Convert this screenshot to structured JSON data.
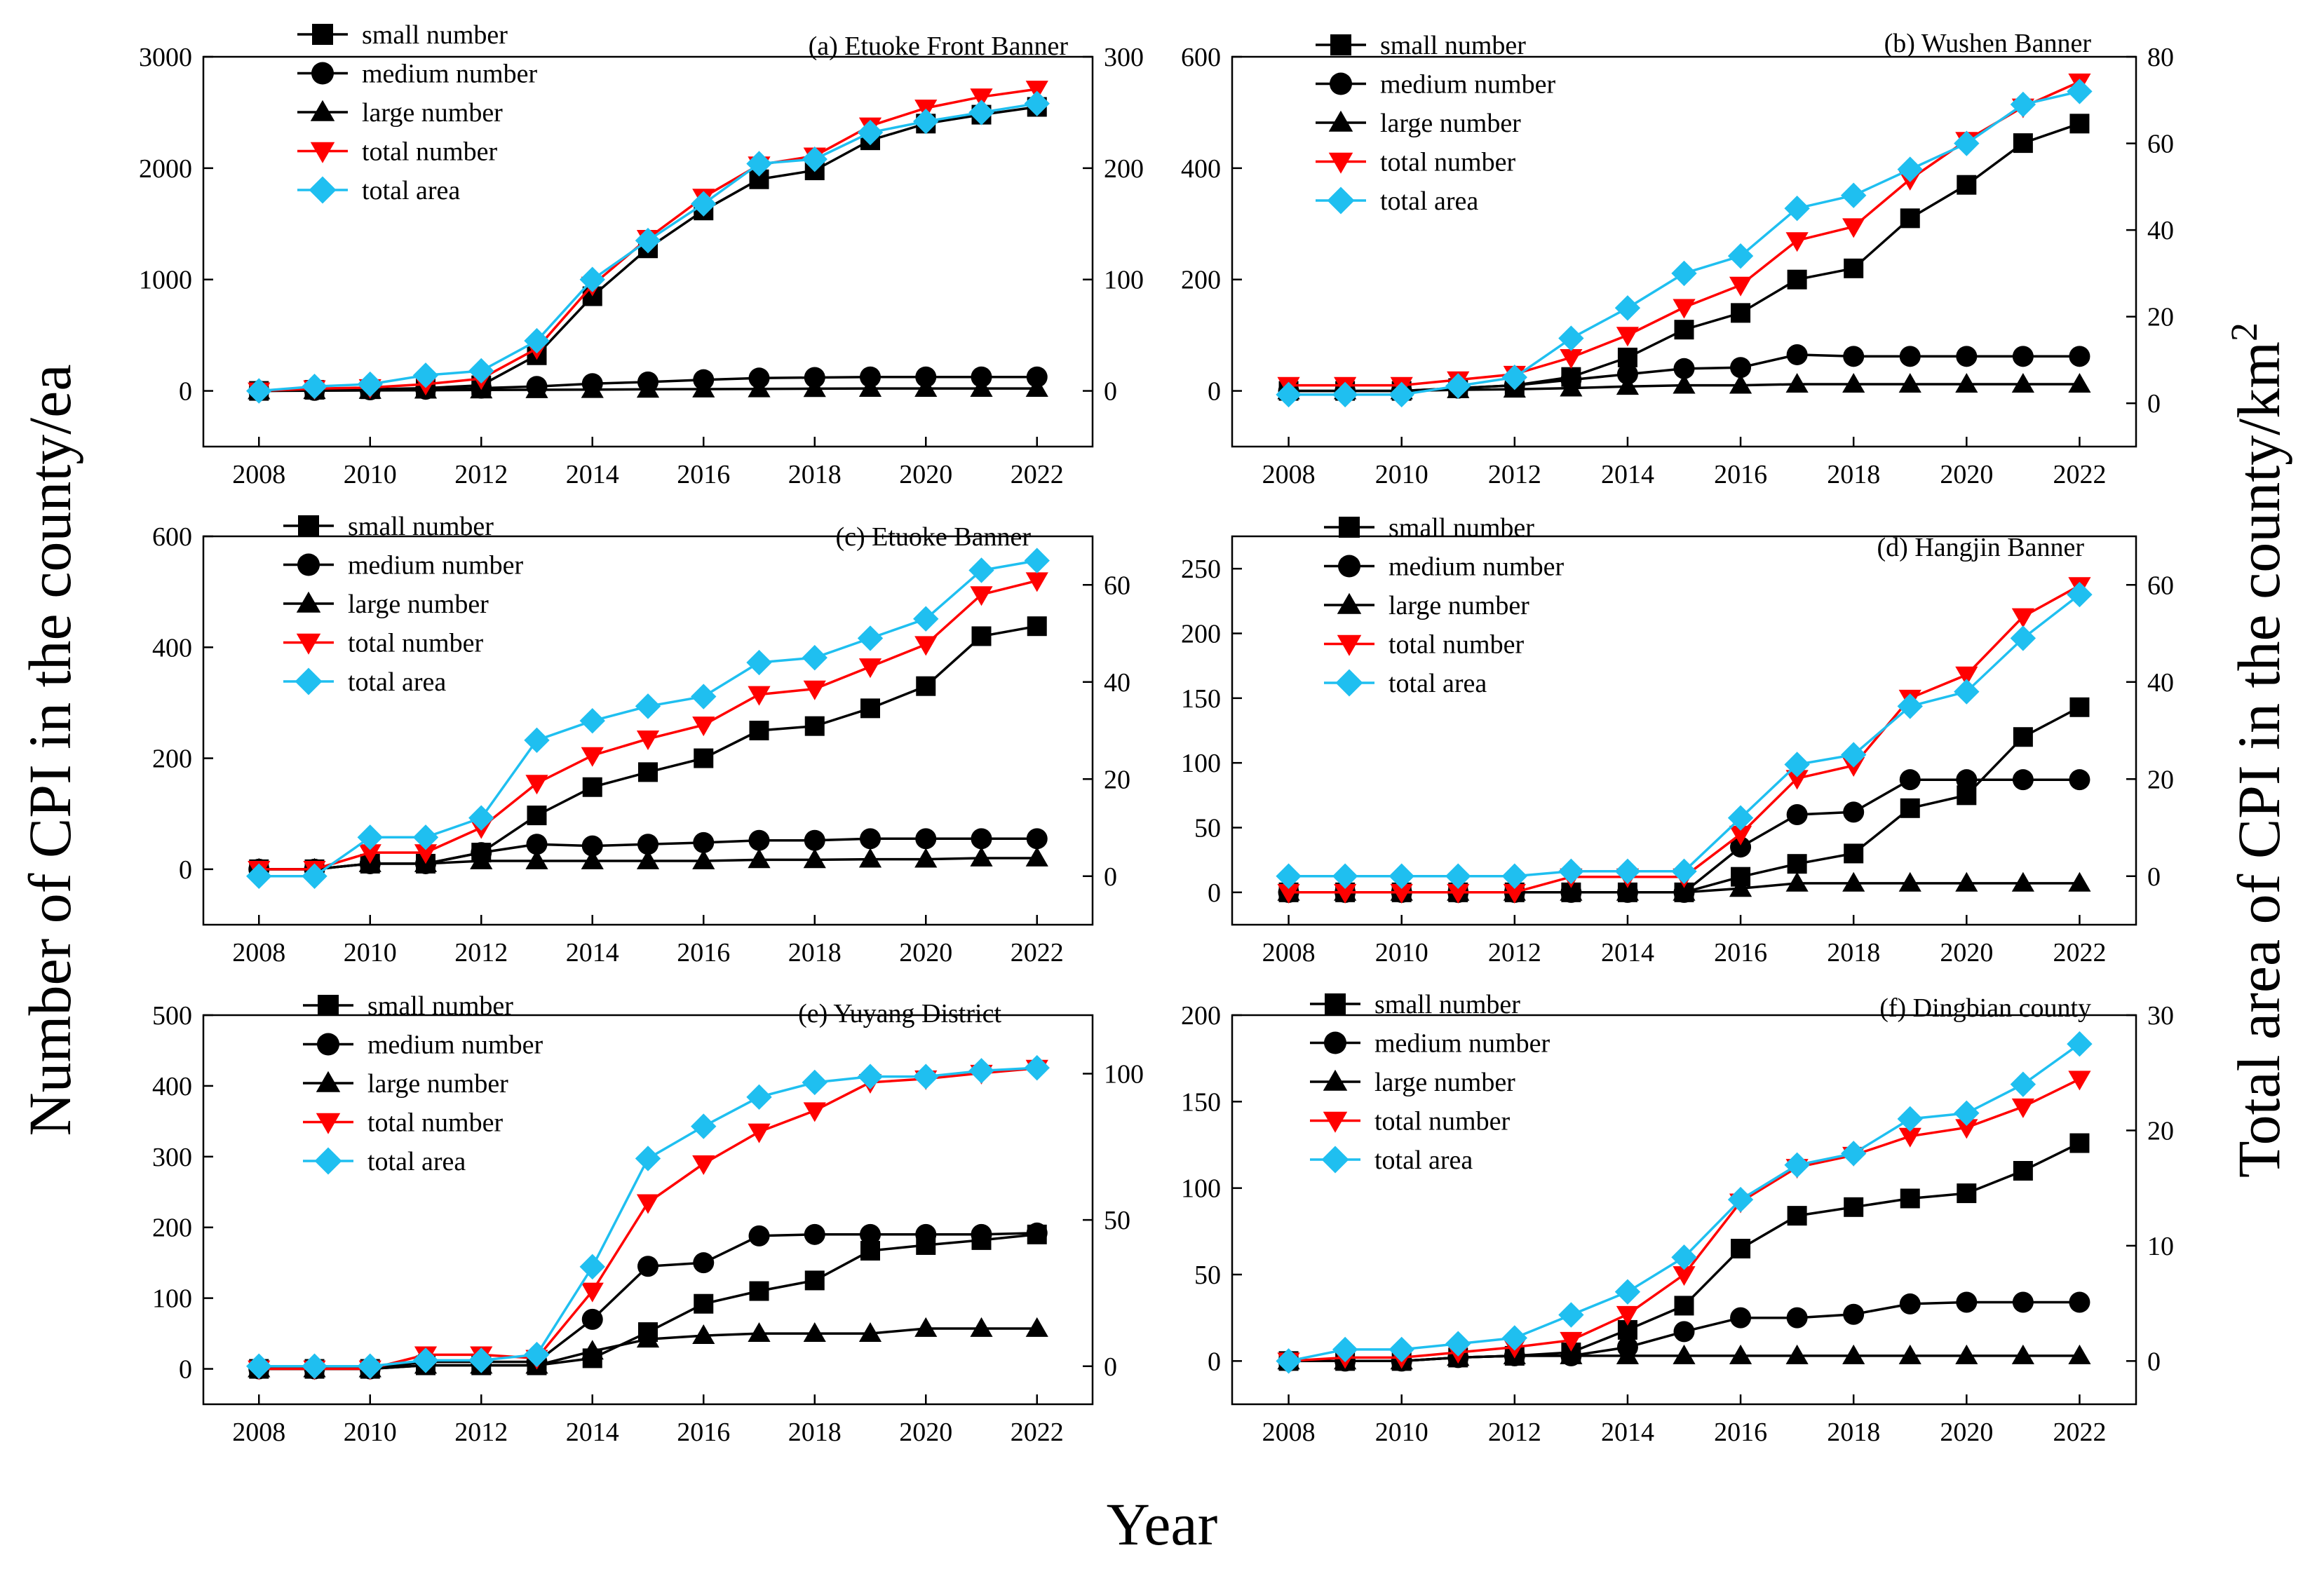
{
  "figure": {
    "ylabel_left": "Number of CPI in the county/ea",
    "ylabel_right": "Total area of CPI in the county/km",
    "ylabel_right_sup": "2",
    "xlabel": "Year"
  },
  "colors": {
    "small": "#000000",
    "medium": "#000000",
    "large": "#000000",
    "total_number": "#ff0000",
    "total_area": "#1fbff0"
  },
  "legend": [
    "small number",
    "medium number",
    "large number",
    "total number",
    "total area"
  ],
  "chart_data": [
    {
      "type": "line",
      "title": "(a) Etuoke Front Banner",
      "x": [
        2008,
        2009,
        2010,
        2011,
        2012,
        2013,
        2014,
        2015,
        2016,
        2017,
        2018,
        2019,
        2020,
        2021,
        2022
      ],
      "xticks": [
        2008,
        2010,
        2012,
        2014,
        2016,
        2018,
        2020,
        2022
      ],
      "ylim_left": [
        -500,
        3000
      ],
      "yticks_left": [
        0,
        1000,
        2000,
        3000
      ],
      "ylim_right": [
        -50,
        300
      ],
      "yticks_right": [
        0,
        100,
        200,
        300
      ],
      "series": [
        {
          "name": "small number",
          "axis": "left",
          "values": [
            0,
            10,
            15,
            25,
            50,
            320,
            850,
            1280,
            1620,
            1900,
            1980,
            2250,
            2400,
            2480,
            2550
          ]
        },
        {
          "name": "medium number",
          "axis": "left",
          "values": [
            0,
            5,
            10,
            15,
            25,
            40,
            65,
            80,
            100,
            115,
            120,
            125,
            125,
            125,
            125
          ]
        },
        {
          "name": "large number",
          "axis": "left",
          "values": [
            0,
            2,
            4,
            6,
            8,
            10,
            12,
            14,
            16,
            18,
            20,
            22,
            22,
            22,
            22
          ]
        },
        {
          "name": "total number",
          "axis": "left",
          "values": [
            0,
            20,
            30,
            60,
            110,
            380,
            950,
            1370,
            1740,
            2030,
            2110,
            2380,
            2540,
            2640,
            2710
          ]
        },
        {
          "name": "total area",
          "axis": "right",
          "values": [
            0,
            4,
            6,
            14,
            18,
            45,
            100,
            135,
            168,
            204,
            208,
            232,
            242,
            250,
            258
          ]
        }
      ]
    },
    {
      "type": "line",
      "title": "(b) Wushen Banner",
      "x": [
        2008,
        2009,
        2010,
        2011,
        2012,
        2013,
        2014,
        2015,
        2016,
        2017,
        2018,
        2019,
        2020,
        2021,
        2022
      ],
      "xticks": [
        2008,
        2010,
        2012,
        2014,
        2016,
        2018,
        2020,
        2022
      ],
      "ylim_left": [
        -100,
        600
      ],
      "yticks_left": [
        0,
        200,
        400,
        600
      ],
      "ylim_right": [
        -10,
        80
      ],
      "yticks_right": [
        0,
        20,
        40,
        60,
        80
      ],
      "series": [
        {
          "name": "small number",
          "axis": "left",
          "values": [
            0,
            0,
            0,
            5,
            10,
            25,
            60,
            110,
            140,
            200,
            220,
            310,
            370,
            445,
            480
          ]
        },
        {
          "name": "medium number",
          "axis": "left",
          "values": [
            0,
            0,
            0,
            5,
            10,
            20,
            30,
            40,
            42,
            65,
            62,
            62,
            62,
            62,
            62
          ]
        },
        {
          "name": "large number",
          "axis": "left",
          "values": [
            0,
            0,
            0,
            2,
            3,
            5,
            8,
            10,
            10,
            12,
            12,
            12,
            12,
            12,
            12
          ]
        },
        {
          "name": "total number",
          "axis": "left",
          "values": [
            10,
            10,
            10,
            20,
            30,
            60,
            100,
            150,
            190,
            270,
            295,
            380,
            450,
            510,
            555
          ]
        },
        {
          "name": "total area",
          "axis": "right",
          "values": [
            2,
            2,
            2,
            4,
            6,
            15,
            22,
            30,
            34,
            45,
            48,
            54,
            60,
            69,
            72
          ]
        }
      ]
    },
    {
      "type": "line",
      "title": "(c) Etuoke Banner",
      "x": [
        2008,
        2009,
        2010,
        2011,
        2012,
        2013,
        2014,
        2015,
        2016,
        2017,
        2018,
        2019,
        2020,
        2021,
        2022
      ],
      "xticks": [
        2008,
        2010,
        2012,
        2014,
        2016,
        2018,
        2020,
        2022
      ],
      "ylim_left": [
        -100,
        600
      ],
      "yticks_left": [
        0,
        200,
        400,
        600
      ],
      "ylim_right": [
        -10,
        70
      ],
      "yticks_right": [
        0,
        20,
        40,
        60
      ],
      "series": [
        {
          "name": "small number",
          "axis": "left",
          "values": [
            0,
            0,
            10,
            10,
            30,
            97,
            148,
            175,
            200,
            250,
            258,
            290,
            330,
            420,
            438
          ]
        },
        {
          "name": "medium number",
          "axis": "left",
          "values": [
            0,
            0,
            10,
            10,
            30,
            45,
            42,
            45,
            48,
            52,
            52,
            55,
            55,
            55,
            55
          ]
        },
        {
          "name": "large number",
          "axis": "left",
          "values": [
            0,
            0,
            10,
            10,
            15,
            15,
            15,
            15,
            15,
            17,
            17,
            18,
            18,
            20,
            20
          ]
        },
        {
          "name": "total number",
          "axis": "left",
          "values": [
            0,
            0,
            30,
            30,
            75,
            155,
            205,
            235,
            260,
            315,
            325,
            365,
            405,
            495,
            520
          ]
        },
        {
          "name": "total area",
          "axis": "right",
          "values": [
            0,
            0,
            8,
            8,
            12,
            28,
            32,
            35,
            37,
            44,
            45,
            49,
            53,
            63,
            65
          ]
        }
      ]
    },
    {
      "type": "line",
      "title": "(d) Hangjin Banner",
      "x": [
        2008,
        2009,
        2010,
        2011,
        2012,
        2013,
        2014,
        2015,
        2016,
        2017,
        2018,
        2019,
        2020,
        2021,
        2022
      ],
      "xticks": [
        2008,
        2010,
        2012,
        2014,
        2016,
        2018,
        2020,
        2022
      ],
      "ylim_left": [
        -25,
        275
      ],
      "yticks_left": [
        0,
        50,
        100,
        150,
        200,
        250
      ],
      "ylim_right": [
        -10,
        70
      ],
      "yticks_right": [
        0,
        20,
        40,
        60
      ],
      "series": [
        {
          "name": "small number",
          "axis": "left",
          "values": [
            0,
            0,
            0,
            0,
            0,
            0,
            0,
            0,
            12,
            22,
            30,
            65,
            75,
            120,
            143
          ]
        },
        {
          "name": "medium number",
          "axis": "left",
          "values": [
            0,
            0,
            0,
            0,
            0,
            0,
            0,
            0,
            35,
            60,
            62,
            87,
            87,
            87,
            87
          ]
        },
        {
          "name": "large number",
          "axis": "left",
          "values": [
            0,
            0,
            0,
            0,
            0,
            0,
            0,
            0,
            3,
            7,
            7,
            7,
            7,
            7,
            7
          ]
        },
        {
          "name": "total number",
          "axis": "left",
          "values": [
            0,
            0,
            0,
            0,
            0,
            12,
            12,
            12,
            45,
            88,
            98,
            150,
            168,
            213,
            237
          ]
        },
        {
          "name": "total area",
          "axis": "right",
          "values": [
            0,
            0,
            0,
            0,
            0,
            1,
            1,
            1,
            12,
            23,
            25,
            35,
            38,
            49,
            58
          ]
        }
      ]
    },
    {
      "type": "line",
      "title": "(e) Yuyang District",
      "x": [
        2008,
        2009,
        2010,
        2011,
        2012,
        2013,
        2014,
        2015,
        2016,
        2017,
        2018,
        2019,
        2020,
        2021,
        2022
      ],
      "xticks": [
        2008,
        2010,
        2012,
        2014,
        2016,
        2018,
        2020,
        2022
      ],
      "ylim_left": [
        -50,
        500
      ],
      "yticks_left": [
        0,
        100,
        200,
        300,
        400,
        500
      ],
      "ylim_right": [
        -13,
        120
      ],
      "yticks_right": [
        0,
        50,
        100
      ],
      "series": [
        {
          "name": "small number",
          "axis": "left",
          "values": [
            0,
            0,
            0,
            5,
            5,
            5,
            15,
            52,
            92,
            110,
            125,
            167,
            175,
            182,
            190
          ]
        },
        {
          "name": "medium number",
          "axis": "left",
          "values": [
            0,
            0,
            0,
            10,
            10,
            10,
            70,
            145,
            150,
            188,
            190,
            190,
            190,
            190,
            192
          ]
        },
        {
          "name": "large number",
          "axis": "left",
          "values": [
            0,
            0,
            0,
            5,
            5,
            5,
            25,
            42,
            47,
            50,
            50,
            50,
            57,
            57,
            57
          ]
        },
        {
          "name": "total number",
          "axis": "left",
          "values": [
            0,
            0,
            0,
            20,
            20,
            15,
            110,
            235,
            290,
            335,
            365,
            405,
            410,
            418,
            425
          ]
        },
        {
          "name": "total area",
          "axis": "right",
          "values": [
            0,
            0,
            0,
            2,
            2,
            4,
            34,
            71,
            82,
            92,
            97,
            99,
            99,
            101,
            102
          ]
        }
      ]
    },
    {
      "type": "line",
      "title": "(f) Dingbian county",
      "x": [
        2008,
        2009,
        2010,
        2011,
        2012,
        2013,
        2014,
        2015,
        2016,
        2017,
        2018,
        2019,
        2020,
        2021,
        2022
      ],
      "xticks": [
        2008,
        2010,
        2012,
        2014,
        2016,
        2018,
        2020,
        2022
      ],
      "ylim_left": [
        -25,
        200
      ],
      "yticks_left": [
        0,
        50,
        100,
        150,
        200
      ],
      "ylim_right": [
        -3.75,
        30
      ],
      "yticks_right": [
        0,
        10,
        20,
        30
      ],
      "series": [
        {
          "name": "small number",
          "axis": "left",
          "values": [
            0,
            0,
            0,
            2,
            3,
            5,
            18,
            32,
            65,
            84,
            89,
            94,
            97,
            110,
            126
          ]
        },
        {
          "name": "medium number",
          "axis": "left",
          "values": [
            0,
            0,
            0,
            2,
            3,
            3,
            8,
            17,
            25,
            25,
            27,
            33,
            34,
            34,
            34
          ]
        },
        {
          "name": "large number",
          "axis": "left",
          "values": [
            0,
            0,
            0,
            2,
            3,
            3,
            3,
            3,
            3,
            3,
            3,
            3,
            3,
            3,
            3
          ]
        },
        {
          "name": "total number",
          "axis": "left",
          "values": [
            0,
            2,
            2,
            5,
            8,
            12,
            27,
            50,
            92,
            112,
            119,
            130,
            135,
            147,
            163
          ]
        },
        {
          "name": "total area",
          "axis": "right",
          "values": [
            0,
            1,
            1,
            1.5,
            2,
            4,
            6,
            9,
            14,
            17,
            18,
            21,
            21.5,
            24,
            27.5
          ]
        }
      ]
    }
  ]
}
